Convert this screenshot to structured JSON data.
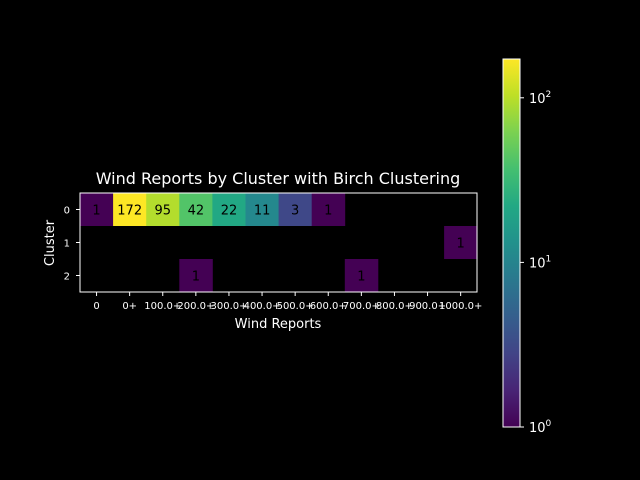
{
  "chart_data": {
    "type": "heatmap",
    "title": "Wind Reports by Cluster with Birch Clustering",
    "xlabel": "Wind Reports",
    "ylabel": "Cluster",
    "x_categories": [
      "0",
      "0+",
      "100.0+",
      "200.0+",
      "300.0+",
      "400.0+",
      "500.0+",
      "600.0+",
      "700.0+",
      "800.0+",
      "900.0+",
      "1000.0+"
    ],
    "y_categories": [
      "0",
      "1",
      "2"
    ],
    "values": [
      [
        1,
        172,
        95,
        42,
        22,
        11,
        3,
        1,
        null,
        null,
        null,
        null
      ],
      [
        null,
        null,
        null,
        null,
        null,
        null,
        null,
        null,
        null,
        null,
        null,
        1
      ],
      [
        null,
        null,
        null,
        1,
        null,
        null,
        null,
        null,
        1,
        null,
        null,
        null
      ]
    ],
    "colormap": "viridis",
    "color_scale": "log",
    "color_range": [
      1,
      172
    ],
    "colorbar": {
      "ticks": [
        {
          "base": "10",
          "exp": "0"
        },
        {
          "base": "10",
          "exp": "1"
        },
        {
          "base": "10",
          "exp": "2"
        }
      ],
      "tick_values": [
        1,
        10,
        100
      ]
    },
    "background_color": "#000000",
    "text_color": "#ffffff",
    "grid": false
  }
}
